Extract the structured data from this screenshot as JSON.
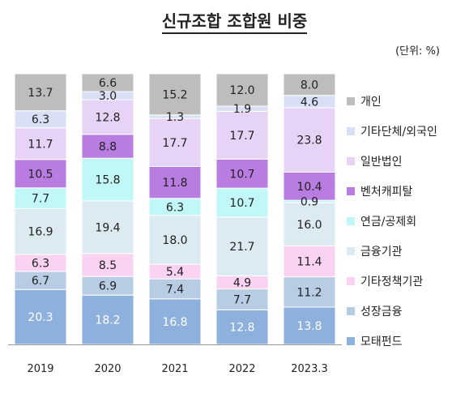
{
  "title": "신규조합 조합원 비중",
  "unit": "(단위: %)",
  "chart_data": {
    "type": "bar",
    "stacked": true,
    "categories": [
      "2019",
      "2020",
      "2021",
      "2022",
      "2023.3"
    ],
    "ylim": [
      0,
      100
    ],
    "series": [
      {
        "name": "모태펀드",
        "color": "#8EB0DC",
        "values": [
          20.3,
          18.2,
          16.8,
          12.8,
          13.8
        ]
      },
      {
        "name": "성장금융",
        "color": "#B8CCE4",
        "values": [
          6.7,
          6.9,
          7.4,
          7.7,
          11.2
        ]
      },
      {
        "name": "기타정책기관",
        "color": "#F9D3F1",
        "values": [
          6.3,
          8.5,
          5.4,
          4.9,
          11.4
        ]
      },
      {
        "name": "금융기관",
        "color": "#DCEAF1",
        "values": [
          16.9,
          19.4,
          18.0,
          21.7,
          16.0
        ]
      },
      {
        "name": "연금/공제회",
        "color": "#C2F7F7",
        "values": [
          7.7,
          15.8,
          6.3,
          10.7,
          0.9
        ]
      },
      {
        "name": "벤처캐피탈",
        "color": "#B97CE1",
        "values": [
          10.5,
          8.8,
          11.8,
          10.7,
          10.4
        ]
      },
      {
        "name": "일반법인",
        "color": "#E6D3F6",
        "values": [
          11.7,
          12.8,
          17.7,
          17.7,
          23.8
        ]
      },
      {
        "name": "기타단체/외국인",
        "color": "#D9DFF5",
        "values": [
          6.3,
          3.0,
          1.3,
          1.9,
          4.6
        ]
      },
      {
        "name": "개인",
        "color": "#BDBDBD",
        "values": [
          13.7,
          6.6,
          15.2,
          12.0,
          8.0
        ]
      }
    ],
    "legend_position": "right",
    "grid": false
  }
}
